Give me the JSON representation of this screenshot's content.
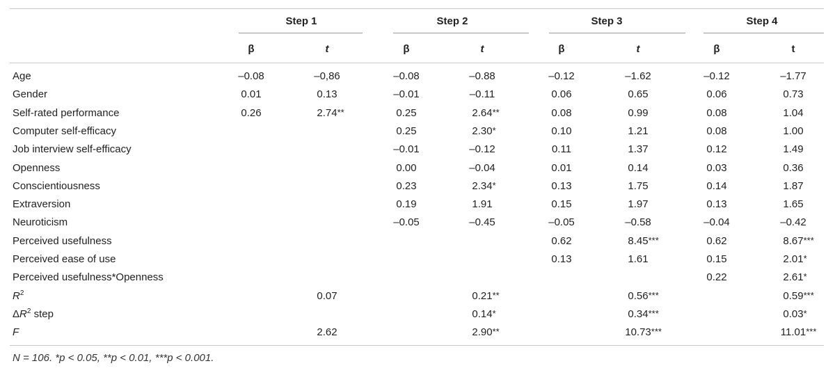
{
  "table": {
    "steps": [
      "Step 1",
      "Step 2",
      "Step 3",
      "Step 4"
    ],
    "subheaders": [
      {
        "label": "β",
        "italic": false
      },
      {
        "label": "t",
        "italic": true
      },
      {
        "label": "β",
        "italic": false
      },
      {
        "label": "t",
        "italic": true
      },
      {
        "label": "β",
        "italic": false
      },
      {
        "label": "t",
        "italic": true
      },
      {
        "label": "β",
        "italic": false
      },
      {
        "label": "t",
        "italic": false
      }
    ],
    "rows": [
      {
        "label": "Age",
        "cells": [
          [
            "–0.08",
            ""
          ],
          [
            "–0,86",
            ""
          ],
          [
            "–0.08",
            ""
          ],
          [
            "–0.88",
            ""
          ],
          [
            "–0.12",
            ""
          ],
          [
            "–1.62",
            ""
          ],
          [
            "–0.12",
            ""
          ],
          [
            "–1.77",
            ""
          ]
        ]
      },
      {
        "label": "Gender",
        "cells": [
          [
            "0.01",
            ""
          ],
          [
            "0.13",
            ""
          ],
          [
            "–0.01",
            ""
          ],
          [
            "–0.11",
            ""
          ],
          [
            "0.06",
            ""
          ],
          [
            "0.65",
            ""
          ],
          [
            "0.06",
            ""
          ],
          [
            "0.73",
            ""
          ]
        ]
      },
      {
        "label": "Self-rated performance",
        "cells": [
          [
            "0.26",
            ""
          ],
          [
            "2.74",
            "**"
          ],
          [
            "0.25",
            ""
          ],
          [
            "2.64",
            "**"
          ],
          [
            "0.08",
            ""
          ],
          [
            "0.99",
            ""
          ],
          [
            "0.08",
            ""
          ],
          [
            "1.04",
            ""
          ]
        ]
      },
      {
        "label": "Computer self-efficacy",
        "cells": [
          [
            "",
            ""
          ],
          [
            "",
            ""
          ],
          [
            "0.25",
            ""
          ],
          [
            "2.30",
            "*"
          ],
          [
            "0.10",
            ""
          ],
          [
            "1.21",
            ""
          ],
          [
            "0.08",
            ""
          ],
          [
            "1.00",
            ""
          ]
        ]
      },
      {
        "label": "Job interview self-efficacy",
        "cells": [
          [
            "",
            ""
          ],
          [
            "",
            ""
          ],
          [
            "–0.01",
            ""
          ],
          [
            "–0.12",
            ""
          ],
          [
            "0.11",
            ""
          ],
          [
            "1.37",
            ""
          ],
          [
            "0.12",
            ""
          ],
          [
            "1.49",
            ""
          ]
        ]
      },
      {
        "label": "Openness",
        "cells": [
          [
            "",
            ""
          ],
          [
            "",
            ""
          ],
          [
            "0.00",
            ""
          ],
          [
            "–0.04",
            ""
          ],
          [
            "0.01",
            ""
          ],
          [
            "0.14",
            ""
          ],
          [
            "0.03",
            ""
          ],
          [
            "0.36",
            ""
          ]
        ]
      },
      {
        "label": "Conscientiousness",
        "cells": [
          [
            "",
            ""
          ],
          [
            "",
            ""
          ],
          [
            "0.23",
            ""
          ],
          [
            "2.34",
            "*"
          ],
          [
            "0.13",
            ""
          ],
          [
            "1.75",
            ""
          ],
          [
            "0.14",
            ""
          ],
          [
            "1.87",
            ""
          ]
        ]
      },
      {
        "label": "Extraversion",
        "cells": [
          [
            "",
            ""
          ],
          [
            "",
            ""
          ],
          [
            "0.19",
            ""
          ],
          [
            "1.91",
            ""
          ],
          [
            "0.15",
            ""
          ],
          [
            "1.97",
            ""
          ],
          [
            "0.13",
            ""
          ],
          [
            "1.65",
            ""
          ]
        ]
      },
      {
        "label": "Neuroticism",
        "cells": [
          [
            "",
            ""
          ],
          [
            "",
            ""
          ],
          [
            "–0.05",
            ""
          ],
          [
            "–0.45",
            ""
          ],
          [
            "–0.05",
            ""
          ],
          [
            "–0.58",
            ""
          ],
          [
            "–0.04",
            ""
          ],
          [
            "–0.42",
            ""
          ]
        ]
      },
      {
        "label": "Perceived usefulness",
        "cells": [
          [
            "",
            ""
          ],
          [
            "",
            ""
          ],
          [
            "",
            ""
          ],
          [
            "",
            ""
          ],
          [
            "0.62",
            ""
          ],
          [
            "8.45",
            "***"
          ],
          [
            "0.62",
            ""
          ],
          [
            "8.67",
            "***"
          ]
        ]
      },
      {
        "label": "Perceived ease of use",
        "cells": [
          [
            "",
            ""
          ],
          [
            "",
            ""
          ],
          [
            "",
            ""
          ],
          [
            "",
            ""
          ],
          [
            "0.13",
            ""
          ],
          [
            "1.61",
            ""
          ],
          [
            "0.15",
            ""
          ],
          [
            "2.01",
            "*"
          ]
        ]
      },
      {
        "label": "Perceived usefulness*Openness",
        "cells": [
          [
            "",
            ""
          ],
          [
            "",
            ""
          ],
          [
            "",
            ""
          ],
          [
            "",
            ""
          ],
          [
            "",
            ""
          ],
          [
            "",
            ""
          ],
          [
            "0.22",
            ""
          ],
          [
            "2.61",
            "*"
          ]
        ]
      }
    ],
    "stat_rows": [
      {
        "label_base": "R",
        "label_sup": "2",
        "label_prefix": "",
        "label_suffix": "",
        "cells": [
          [
            "",
            ""
          ],
          [
            "0.07",
            ""
          ],
          [
            "",
            ""
          ],
          [
            "0.21",
            "**"
          ],
          [
            "",
            ""
          ],
          [
            "0.56",
            "***"
          ],
          [
            "",
            ""
          ],
          [
            "0.59",
            "***"
          ]
        ]
      },
      {
        "label_base": "R",
        "label_sup": "2",
        "label_prefix": "Δ",
        "label_suffix": " step",
        "cells": [
          [
            "",
            ""
          ],
          [
            "",
            ""
          ],
          [
            "",
            ""
          ],
          [
            "0.14",
            "*"
          ],
          [
            "",
            ""
          ],
          [
            "0.34",
            "***"
          ],
          [
            "",
            ""
          ],
          [
            "0.03",
            "*"
          ]
        ]
      },
      {
        "label_base": "F",
        "label_sup": "",
        "label_prefix": "",
        "label_suffix": "",
        "cells": [
          [
            "",
            ""
          ],
          [
            "2.62",
            ""
          ],
          [
            "",
            ""
          ],
          [
            "2.90",
            "**"
          ],
          [
            "",
            ""
          ],
          [
            "10.73",
            "***"
          ],
          [
            "",
            ""
          ],
          [
            "11.01",
            "***"
          ]
        ]
      }
    ],
    "note": "N = 106. *p < 0.05, **p < 0.01, ***p < 0.001."
  }
}
